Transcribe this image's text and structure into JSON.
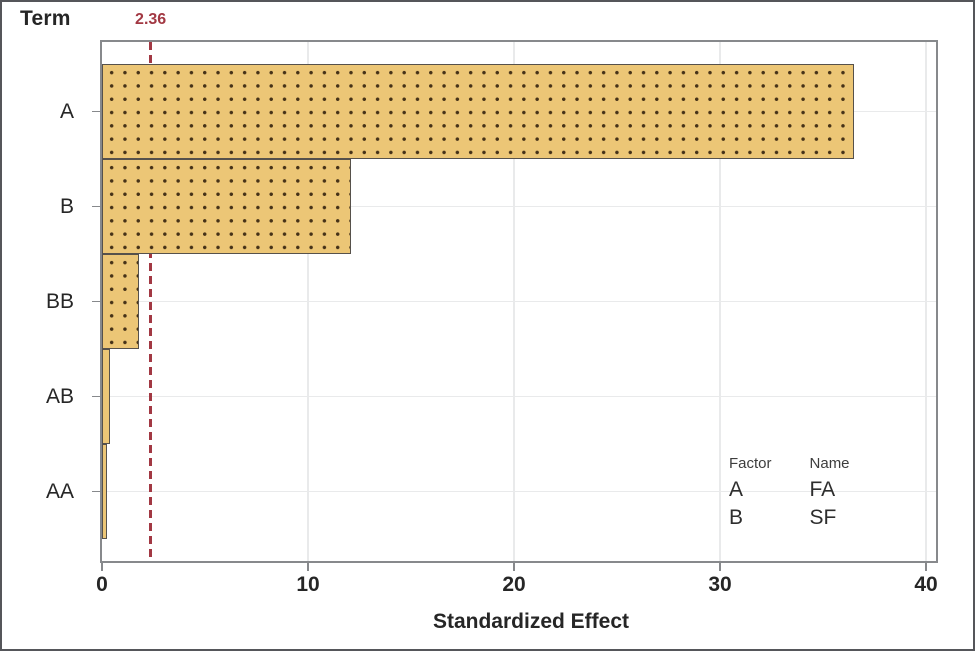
{
  "figure": {
    "y_axis_title": "Term",
    "x_axis_title": "Standardized Effect",
    "reference_line_label": "2.36"
  },
  "chart_data": {
    "type": "bar",
    "orientation": "horizontal",
    "title": "",
    "xlabel": "Standardized Effect",
    "ylabel": "Term",
    "categories": [
      "A",
      "B",
      "BB",
      "AB",
      "AA"
    ],
    "values": [
      36.5,
      12.1,
      1.8,
      0.4,
      0.22
    ],
    "reference_line": 2.36,
    "reference_line_label": "2.36",
    "xlim": [
      0,
      40.5
    ],
    "x_ticks": [
      0,
      10,
      20,
      30,
      40
    ],
    "grid": true,
    "legend_position": "bottom-right-inside",
    "legend": {
      "headers": [
        "Factor",
        "Name"
      ],
      "rows": [
        [
          "A",
          "FA"
        ],
        [
          "B",
          "SF"
        ]
      ]
    },
    "colors": {
      "bar_fill": "#ecc676",
      "bar_dot": "#463218",
      "bar_border": "#56514b",
      "reference_line": "#a23843",
      "plot_border": "#87898c",
      "gridline": "#e9eaeb",
      "tick": "#87898c",
      "text": "#262626"
    }
  }
}
